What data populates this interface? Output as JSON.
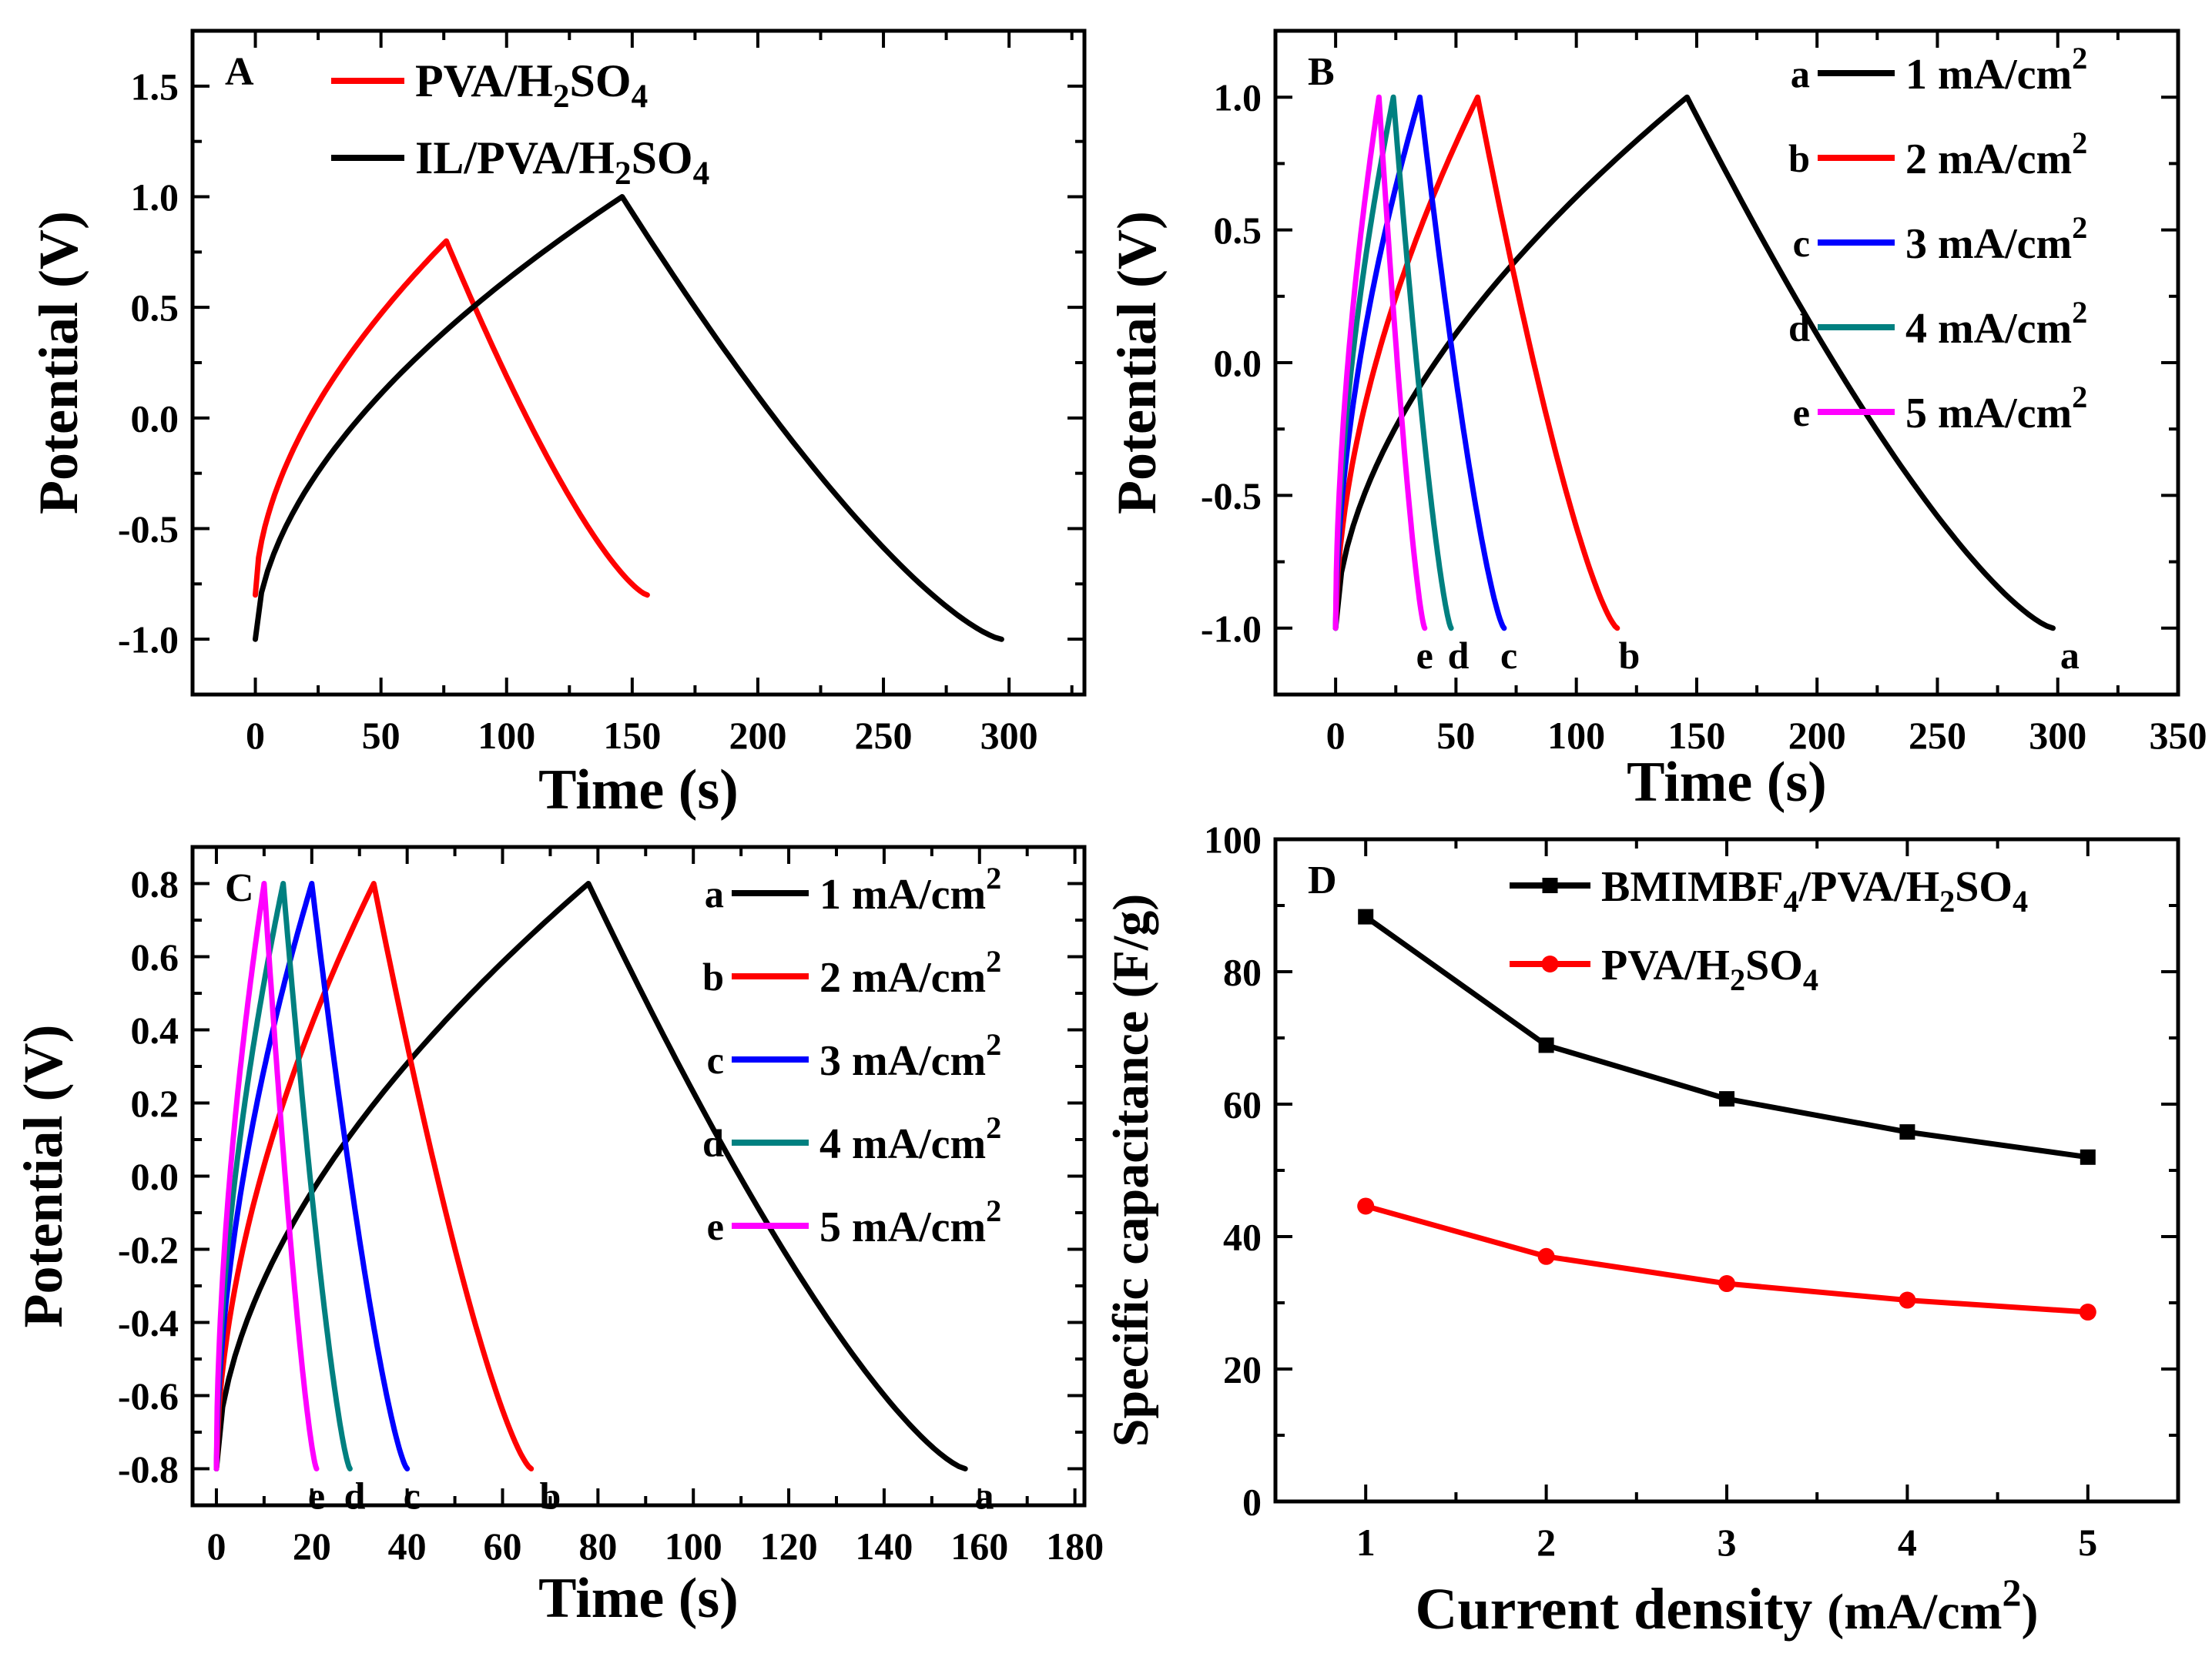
{
  "chart_data": [
    {
      "id": "A",
      "type": "line",
      "panel_label": "A",
      "xlabel": "Time (s)",
      "ylabel": "Potential (V)",
      "xlim": [
        -25,
        330
      ],
      "ylim": [
        -1.25,
        1.75
      ],
      "xticks": [
        0,
        50,
        100,
        150,
        200,
        250,
        300
      ],
      "yticks": [
        -1.0,
        -0.5,
        0.0,
        0.5,
        1.0,
        1.5
      ],
      "xtick_labels": [
        "0",
        "50",
        "100",
        "150",
        "200",
        "250",
        "300"
      ],
      "ytick_labels": [
        "-1.0",
        "-0.5",
        "0.0",
        "0.5",
        "1.0",
        "1.5"
      ],
      "legend": [
        {
          "series": 0,
          "pre": "PVA/H",
          "sub1": "2",
          "mid": "SO",
          "sub2": "4"
        },
        {
          "series": 1,
          "pre": "IL/PVA/H",
          "sub1": "2",
          "mid": "SO",
          "sub2": "4"
        }
      ],
      "series": [
        {
          "name": "PVA/H2SO4",
          "color": "#ff0000",
          "t_charge": 76,
          "t_end": 156,
          "v_min": -0.8,
          "v_max": 0.8,
          "shape": 0.55
        },
        {
          "name": "IL/PVA/H2SO4",
          "color": "#000000",
          "t_charge": 146,
          "t_end": 297,
          "v_min": -1.0,
          "v_max": 1.0,
          "shape": 0.55
        }
      ]
    },
    {
      "id": "B",
      "type": "line",
      "panel_label": "B",
      "xlabel": "Time (s)",
      "ylabel": "Potential (V)",
      "xlim": [
        -25,
        350
      ],
      "ylim": [
        -1.25,
        1.25
      ],
      "xticks": [
        0,
        50,
        100,
        150,
        200,
        250,
        300,
        350
      ],
      "yticks": [
        -1.0,
        -0.5,
        0.0,
        0.5,
        1.0
      ],
      "xtick_labels": [
        "0",
        "50",
        "100",
        "150",
        "200",
        "250",
        "300",
        "350"
      ],
      "ytick_labels": [
        "-1.0",
        "-0.5",
        "0.0",
        "0.5",
        "1.0"
      ],
      "legend": [
        {
          "series": 0,
          "tag": "a",
          "pre": "1 mA/cm",
          "sup": "2"
        },
        {
          "series": 1,
          "tag": "b",
          "pre": "2 mA/cm",
          "sup": "2"
        },
        {
          "series": 2,
          "tag": "c",
          "pre": "3 mA/cm",
          "sup": "2"
        },
        {
          "series": 3,
          "tag": "d",
          "pre": "4 mA/cm",
          "sup": "2"
        },
        {
          "series": 4,
          "tag": "e",
          "pre": "5 mA/cm",
          "sup": "2"
        }
      ],
      "series": [
        {
          "name": "a",
          "color": "#000000",
          "t_charge": 146,
          "t_end": 298,
          "v_min": -1.0,
          "v_max": 1.0,
          "shape": 0.55
        },
        {
          "name": "b",
          "color": "#ff0000",
          "t_charge": 59,
          "t_end": 117,
          "v_min": -1.0,
          "v_max": 1.0,
          "shape": 0.55
        },
        {
          "name": "c",
          "color": "#0000ff",
          "t_charge": 35,
          "t_end": 70,
          "v_min": -1.0,
          "v_max": 1.0,
          "shape": 0.55
        },
        {
          "name": "d",
          "color": "#008080",
          "t_charge": 24,
          "t_end": 48,
          "v_min": -1.0,
          "v_max": 1.0,
          "shape": 0.55
        },
        {
          "name": "e",
          "color": "#ff00ff",
          "t_charge": 18,
          "t_end": 37,
          "v_min": -1.0,
          "v_max": 1.0,
          "shape": 0.55
        }
      ],
      "end_labels": [
        {
          "text": "a",
          "t": 305
        },
        {
          "text": "b",
          "t": 122
        },
        {
          "text": "c",
          "t": 72
        },
        {
          "text": "d",
          "t": 51
        },
        {
          "text": "e",
          "t": 37
        }
      ]
    },
    {
      "id": "C",
      "type": "line",
      "panel_label": "C",
      "xlabel": "Time (s)",
      "ylabel": "Potential (V)",
      "xlim": [
        -5,
        182
      ],
      "ylim": [
        -0.9,
        0.9
      ],
      "xticks": [
        0,
        20,
        40,
        60,
        80,
        100,
        120,
        140,
        160,
        180
      ],
      "yticks": [
        -0.8,
        -0.6,
        -0.4,
        -0.2,
        0.0,
        0.2,
        0.4,
        0.6,
        0.8
      ],
      "xtick_labels": [
        "0",
        "20",
        "40",
        "60",
        "80",
        "100",
        "120",
        "140",
        "160",
        "180"
      ],
      "ytick_labels": [
        "-0.8",
        "-0.6",
        "-0.4",
        "-0.2",
        "0.0",
        "0.2",
        "0.4",
        "0.6",
        "0.8"
      ],
      "legend": [
        {
          "series": 0,
          "tag": "a",
          "pre": "1 mA/cm",
          "sup": "2"
        },
        {
          "series": 1,
          "tag": "b",
          "pre": "2 mA/cm",
          "sup": "2"
        },
        {
          "series": 2,
          "tag": "c",
          "pre": "3 mA/cm",
          "sup": "2"
        },
        {
          "series": 3,
          "tag": "d",
          "pre": "4 mA/cm",
          "sup": "2"
        },
        {
          "series": 4,
          "tag": "e",
          "pre": "5 mA/cm",
          "sup": "2"
        }
      ],
      "series": [
        {
          "name": "a",
          "color": "#000000",
          "t_charge": 78,
          "t_end": 157,
          "v_min": -0.8,
          "v_max": 0.8,
          "shape": 0.55
        },
        {
          "name": "b",
          "color": "#ff0000",
          "t_charge": 33,
          "t_end": 66,
          "v_min": -0.8,
          "v_max": 0.8,
          "shape": 0.55
        },
        {
          "name": "c",
          "color": "#0000ff",
          "t_charge": 20,
          "t_end": 40,
          "v_min": -0.8,
          "v_max": 0.8,
          "shape": 0.55
        },
        {
          "name": "d",
          "color": "#008080",
          "t_charge": 14,
          "t_end": 28,
          "v_min": -0.8,
          "v_max": 0.8,
          "shape": 0.55
        },
        {
          "name": "e",
          "color": "#ff00ff",
          "t_charge": 10,
          "t_end": 21,
          "v_min": -0.8,
          "v_max": 0.8,
          "shape": 0.55
        }
      ],
      "end_labels": [
        {
          "text": "a",
          "t": 161
        },
        {
          "text": "b",
          "t": 70
        },
        {
          "text": "c",
          "t": 41
        },
        {
          "text": "d",
          "t": 29
        },
        {
          "text": "e",
          "t": 21
        }
      ]
    },
    {
      "id": "D",
      "type": "line",
      "panel_label": "D",
      "xlabel": "Current density",
      "xlabel_unit_pre": "(mA/cm",
      "xlabel_unit_sup": "2",
      "xlabel_unit_post": ")",
      "ylabel": "Specific capacitance (F/g)",
      "xlim": [
        0.5,
        5.5
      ],
      "ylim": [
        0,
        100
      ],
      "xticks": [
        1,
        2,
        3,
        4,
        5
      ],
      "yticks": [
        0,
        20,
        40,
        60,
        80,
        100
      ],
      "xtick_labels": [
        "1",
        "2",
        "3",
        "4",
        "5"
      ],
      "ytick_labels": [
        "0",
        "20",
        "40",
        "60",
        "80",
        "100"
      ],
      "legend": [
        {
          "series": 0,
          "marker": "square",
          "pre": "BMIMBF",
          "sub1": "4",
          "mid": "/PVA/H",
          "sub2": "2",
          "mid2": "SO",
          "sub3": "4"
        },
        {
          "series": 1,
          "marker": "circle",
          "pre": "PVA/H",
          "sub1": "2",
          "mid": "SO",
          "sub2": "4"
        }
      ],
      "series": [
        {
          "name": "BMIMBF4/PVA/H2SO4",
          "color": "#000000",
          "marker": "square",
          "x": [
            1,
            2,
            3,
            4,
            5
          ],
          "y": [
            88.3,
            68.9,
            60.8,
            55.8,
            52.0
          ]
        },
        {
          "name": "PVA/H2SO4",
          "color": "#ff0000",
          "marker": "circle",
          "x": [
            1,
            2,
            3,
            4,
            5
          ],
          "y": [
            44.6,
            37.0,
            32.9,
            30.4,
            28.6
          ]
        }
      ]
    }
  ]
}
